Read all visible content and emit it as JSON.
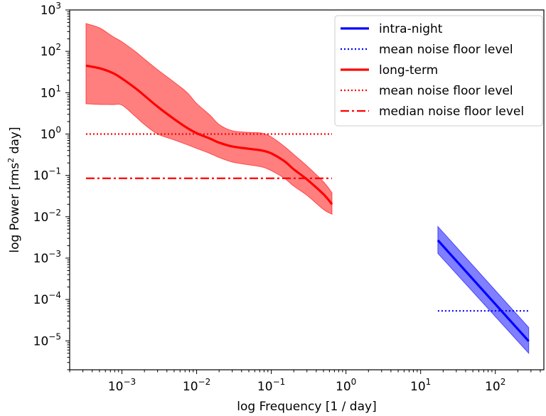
{
  "chart_data": {
    "type": "line",
    "title": "",
    "xlabel": "log Frequency [1 / day]",
    "ylabel_main": "log Power [rms",
    "ylabel_sup": "2",
    "ylabel_end": " day]",
    "xscale": "log",
    "yscale": "log",
    "xlim_exponent": [
      -3.7,
      2.65
    ],
    "ylim_exponent": [
      -5.7,
      3.0
    ],
    "x_ticks": [
      {
        "exp": -3,
        "base": "10",
        "sup": "−3"
      },
      {
        "exp": -2,
        "base": "10",
        "sup": "−2"
      },
      {
        "exp": -1,
        "base": "10",
        "sup": "−1"
      },
      {
        "exp": 0,
        "base": "10",
        "sup": "0"
      },
      {
        "exp": 1,
        "base": "10",
        "sup": "1"
      },
      {
        "exp": 2,
        "base": "10",
        "sup": "2"
      }
    ],
    "y_ticks": [
      {
        "exp": 3,
        "base": "10",
        "sup": "3"
      },
      {
        "exp": 2,
        "base": "10",
        "sup": "2"
      },
      {
        "exp": 1,
        "base": "10",
        "sup": "1"
      },
      {
        "exp": 0,
        "base": "10",
        "sup": "0"
      },
      {
        "exp": -1,
        "base": "10",
        "sup": "−1"
      },
      {
        "exp": -2,
        "base": "10",
        "sup": "−2"
      },
      {
        "exp": -3,
        "base": "10",
        "sup": "−3"
      },
      {
        "exp": -4,
        "base": "10",
        "sup": "−4"
      },
      {
        "exp": -5,
        "base": "10",
        "sup": "−5"
      }
    ],
    "grid": false,
    "legend_position": "top-right",
    "legend": [
      {
        "label": "intra-night",
        "color": "#0000ff",
        "style": "solid"
      },
      {
        "label": "mean noise floor level",
        "color": "#0000ff",
        "style": "dotted"
      },
      {
        "label": "long-term",
        "color": "#ff0000",
        "style": "solid"
      },
      {
        "label": "mean noise floor level",
        "color": "#ff0000",
        "style": "dotted"
      },
      {
        "label": "median noise floor level",
        "color": "#ff0000",
        "style": "dashdot"
      }
    ],
    "series": [
      {
        "name": "long-term",
        "color": "#ff0000",
        "band_color": "#ff0000",
        "band_opacity": 0.5,
        "x": [
          0.00033,
          0.0005,
          0.00075,
          0.001,
          0.0015,
          0.002,
          0.003,
          0.005,
          0.0075,
          0.01,
          0.015,
          0.02,
          0.03,
          0.05,
          0.075,
          0.1,
          0.15,
          0.2,
          0.3,
          0.5,
          0.65
        ],
        "y": [
          45,
          39,
          30,
          22,
          13,
          8.5,
          4.6,
          2.3,
          1.4,
          1.05,
          0.78,
          0.62,
          0.5,
          0.44,
          0.4,
          0.34,
          0.22,
          0.14,
          0.08,
          0.035,
          0.02
        ],
        "upper": [
          470,
          370,
          230,
          170,
          100,
          65,
          36,
          18,
          10,
          5.5,
          2.9,
          1.7,
          1.2,
          1.1,
          1.05,
          0.85,
          0.5,
          0.32,
          0.17,
          0.07,
          0.038
        ],
        "lower": [
          5.4,
          5.2,
          5.15,
          5.0,
          2.7,
          1.7,
          1.0,
          0.72,
          0.55,
          0.45,
          0.34,
          0.27,
          0.21,
          0.18,
          0.16,
          0.13,
          0.085,
          0.055,
          0.033,
          0.015,
          0.0115
        ]
      },
      {
        "name": "intra-night",
        "color": "#0000ff",
        "band_color": "#0000ff",
        "band_opacity": 0.5,
        "x": [
          17,
          280
        ],
        "y": [
          0.0027,
          9.8e-06
        ],
        "upper": [
          0.0058,
          2.1e-05
        ],
        "lower": [
          0.0013,
          5e-06
        ]
      }
    ],
    "noise_floors": [
      {
        "label": "mean noise floor level",
        "color": "#0000ff",
        "style": "dotted",
        "y": 5.3e-05,
        "x_range": [
          17,
          280
        ]
      },
      {
        "label": "mean noise floor level",
        "color": "#ff0000",
        "style": "dotted",
        "y": 1.0,
        "x_range": [
          0.00033,
          0.65
        ]
      },
      {
        "label": "median noise floor level",
        "color": "#ff0000",
        "style": "dashdot",
        "y": 0.085,
        "x_range": [
          0.00033,
          0.65
        ]
      }
    ]
  }
}
